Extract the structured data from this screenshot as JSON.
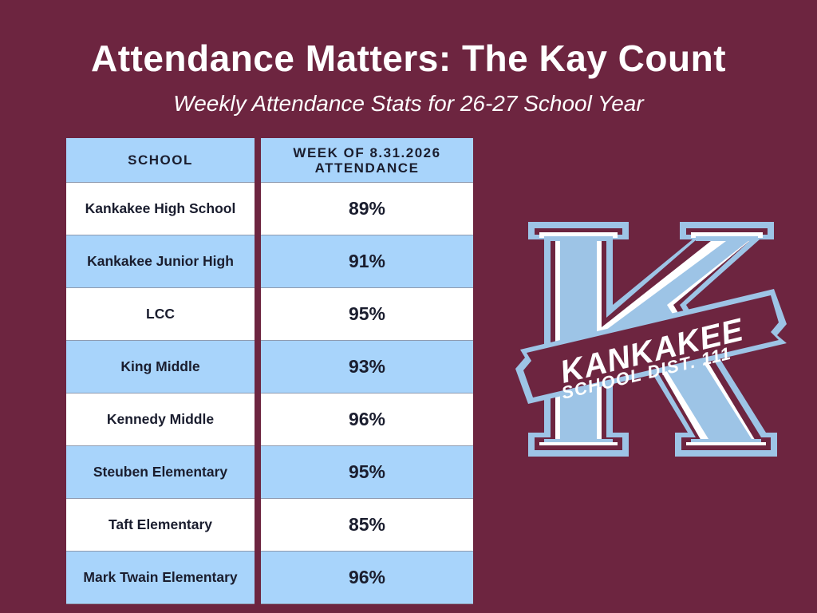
{
  "header": {
    "title": "Attendance Matters: The Kay Count",
    "subtitle": "Weekly Attendance Stats for 26-27 School Year"
  },
  "table": {
    "columns": [
      "SCHOOL",
      "WEEK OF 8.31.2026 ATTENDANCE"
    ],
    "rows": [
      {
        "school": "Kankakee High School",
        "attendance": "89%"
      },
      {
        "school": "Kankakee Junior High",
        "attendance": "91%"
      },
      {
        "school": "LCC",
        "attendance": "95%"
      },
      {
        "school": "King Middle",
        "attendance": "93%"
      },
      {
        "school": "Kennedy Middle",
        "attendance": "96%"
      },
      {
        "school": "Steuben Elementary",
        "attendance": "95%"
      },
      {
        "school": "Taft Elementary",
        "attendance": "85%"
      },
      {
        "school": "Mark Twain Elementary",
        "attendance": "96%"
      }
    ]
  },
  "logo": {
    "letter": "K",
    "banner_line1": "KANKAKEE",
    "banner_line2": "SCHOOL DIST. 111"
  },
  "colors": {
    "background": "#6d2540",
    "light_blue": "#a8d4fb",
    "logo_blue": "#9dc4e6",
    "row_white": "#ffffff",
    "text_dark": "#1a1d2e"
  }
}
